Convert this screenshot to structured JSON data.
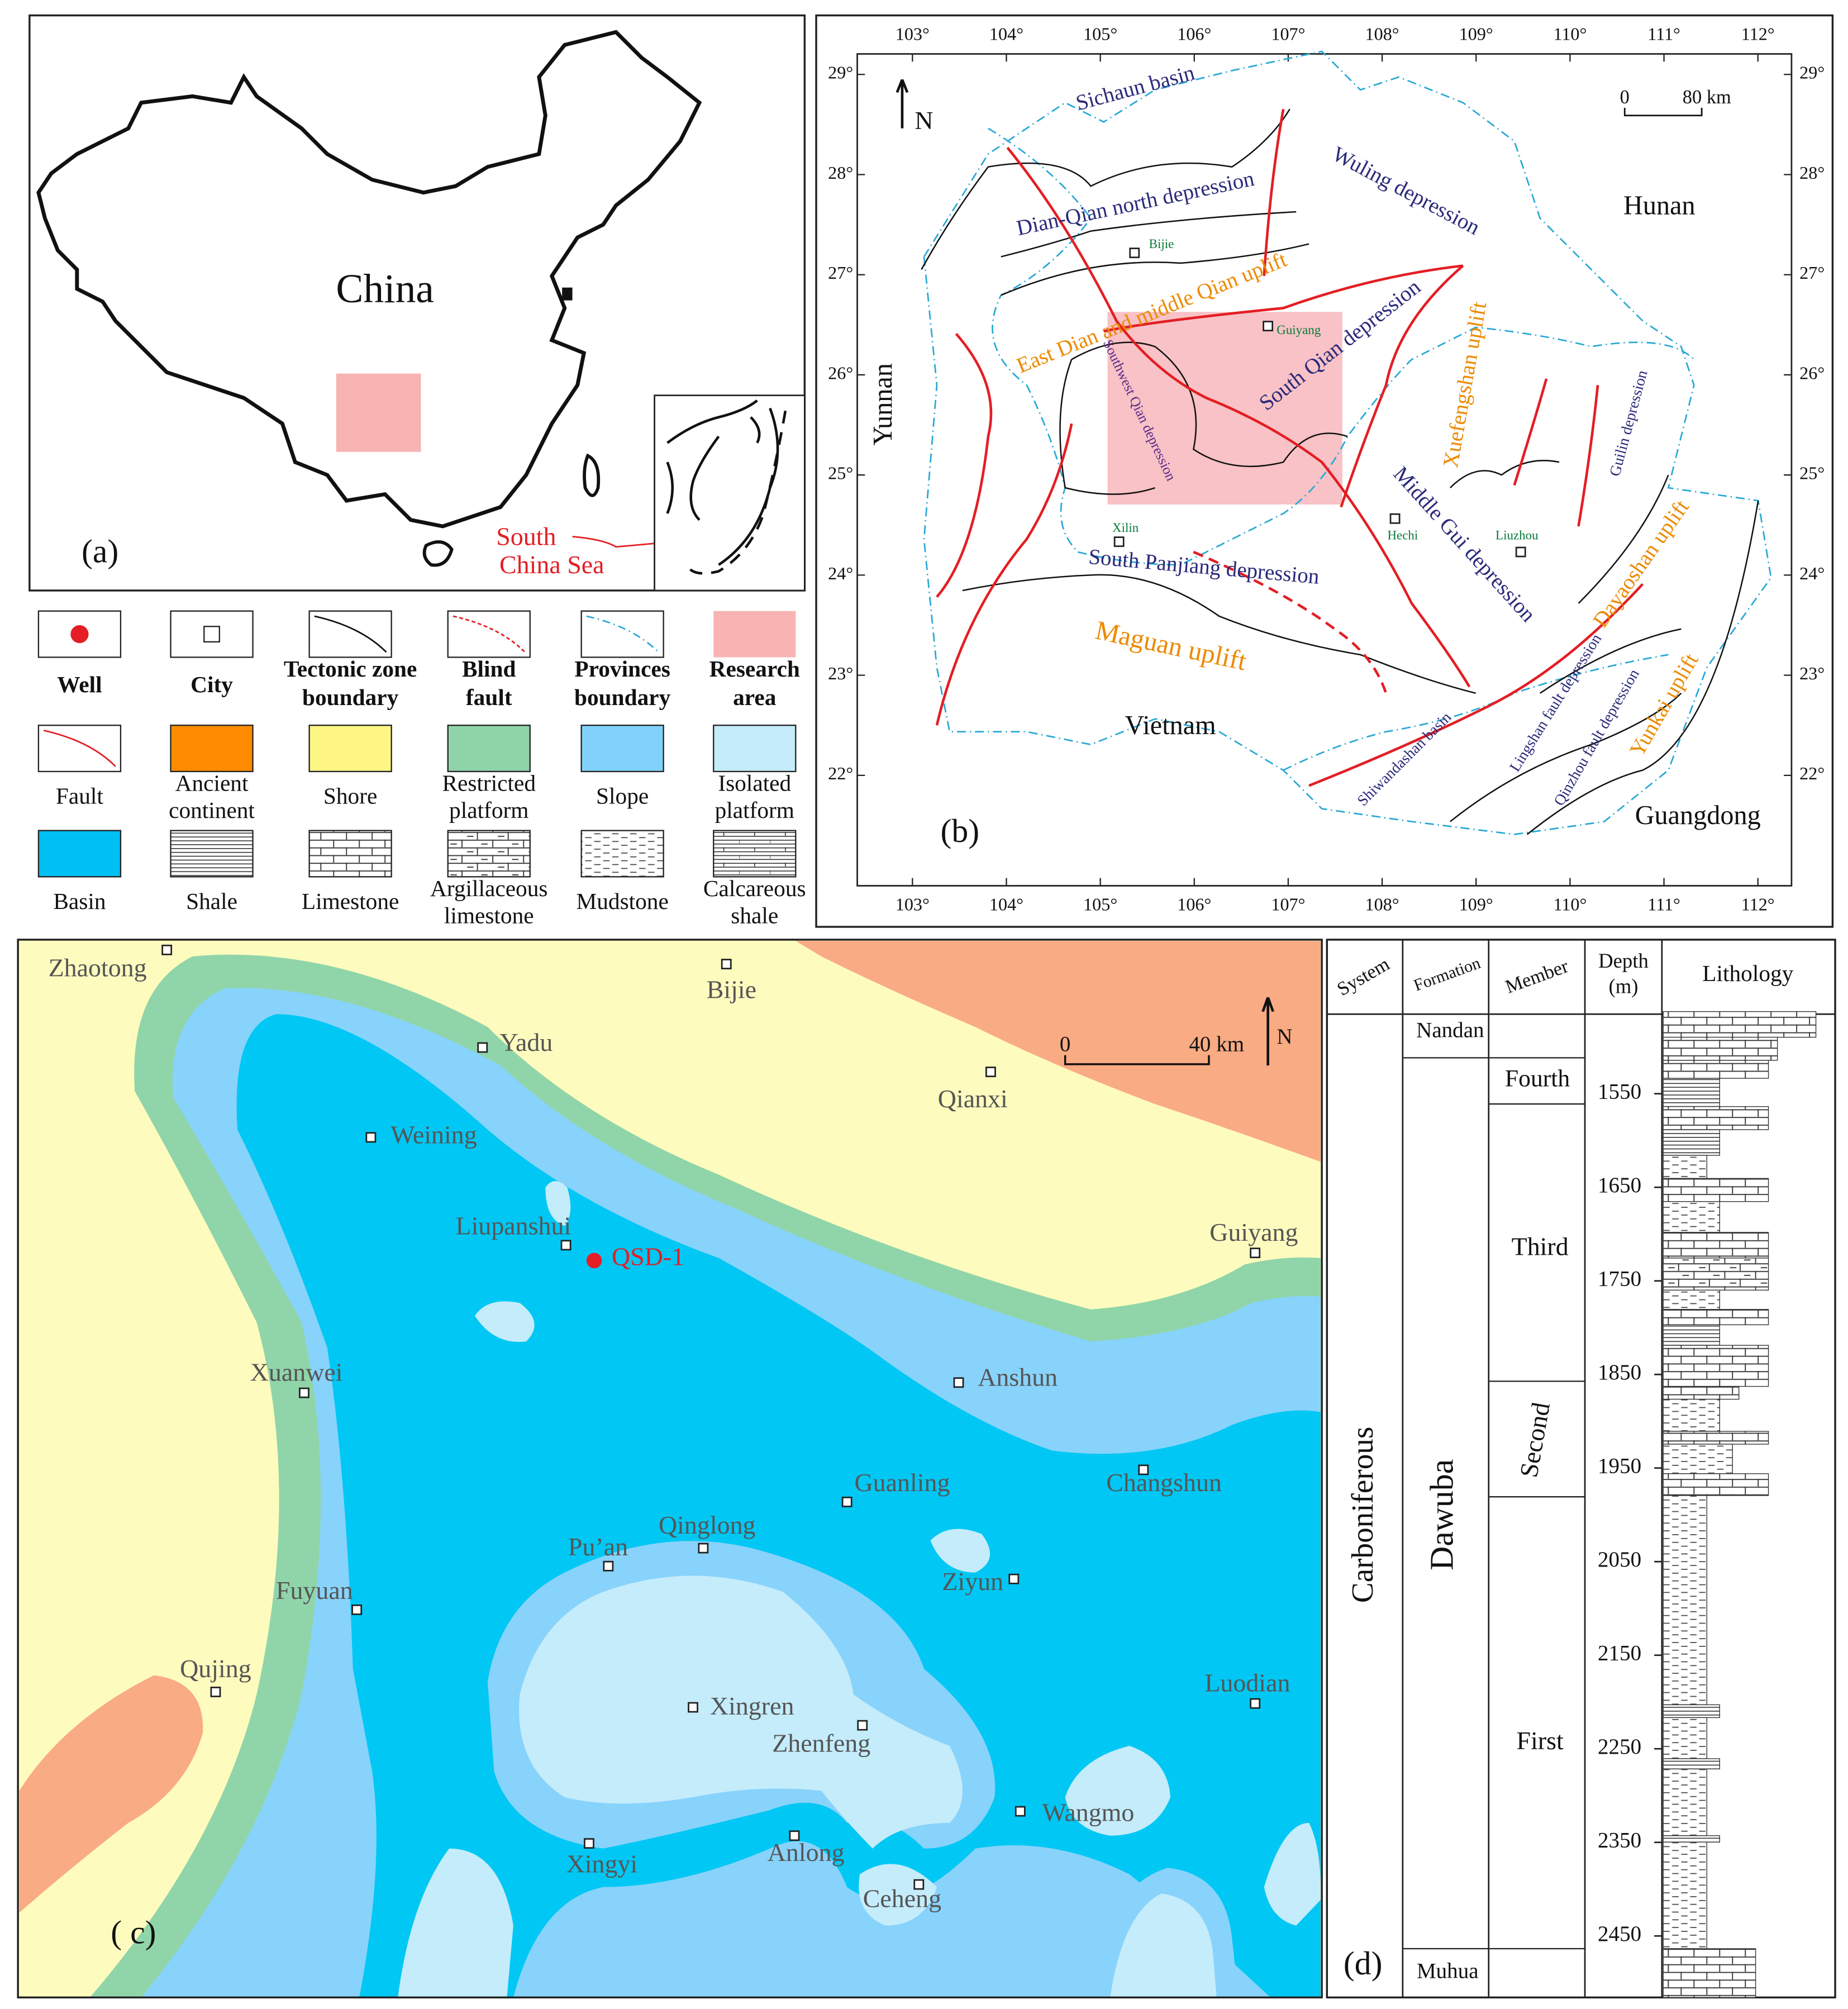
{
  "panel_a": {
    "label": "(a)",
    "country": "China",
    "sea_label": [
      "South",
      "China Sea"
    ]
  },
  "legend": {
    "items": [
      {
        "lines": [
          "Well"
        ]
      },
      {
        "lines": [
          "City"
        ]
      },
      {
        "lines": [
          "Tectonic zone",
          "boundary"
        ]
      },
      {
        "lines": [
          "Blind",
          "fault"
        ]
      },
      {
        "lines": [
          "Provinces",
          "boundary"
        ]
      },
      {
        "lines": [
          "Research",
          "area"
        ]
      },
      {
        "lines": [
          "Fault"
        ]
      },
      {
        "lines": [
          "Ancient",
          "continent"
        ]
      },
      {
        "lines": [
          "Shore"
        ]
      },
      {
        "lines": [
          "Restricted",
          "platform"
        ]
      },
      {
        "lines": [
          "Slope"
        ]
      },
      {
        "lines": [
          "Isolated",
          "platform"
        ]
      },
      {
        "lines": [
          "Basin"
        ]
      },
      {
        "lines": [
          "Shale"
        ]
      },
      {
        "lines": [
          "Limestone"
        ]
      },
      {
        "lines": [
          "Argillaceous",
          "limestone"
        ]
      },
      {
        "lines": [
          "Mudstone"
        ]
      },
      {
        "lines": [
          "Calcareous",
          "shale"
        ]
      }
    ]
  },
  "panel_b": {
    "label": "(b)",
    "north": "N",
    "scale": [
      "0",
      "80 km"
    ],
    "lon_ticks": [
      "103°",
      "104°",
      "105°",
      "106°",
      "107°",
      "108°",
      "109°",
      "110°",
      "111°",
      "112°"
    ],
    "lat_ticks": [
      "29°",
      "28°",
      "27°",
      "26°",
      "25°",
      "24°",
      "23°",
      "22°"
    ],
    "regions": [
      "Sichaun basin",
      "Dian-Qian north depression",
      "Wuling depression",
      "Hunan",
      "East Dian  and middle Qian uplift",
      "South Qian depression",
      "Xuefengshan uplift",
      "Guilin depression",
      "Southwest Qian depression",
      "Yunnan",
      "Middle Gui depression",
      "South Panjiang depression",
      "Dayaoshan uplift",
      "Maguan uplift",
      "Lingshan fault depression",
      "Yunkai uplift",
      "Qinzhou fault depression",
      "Shiwandashan basin",
      "Vietnam",
      "Guangdong"
    ],
    "cities": [
      "Bijie",
      "Guiyang",
      "Xilin",
      "Hechi",
      "Liuzhou"
    ]
  },
  "panel_c": {
    "label": "( c)",
    "north": "N",
    "scale": [
      "0",
      "40 km"
    ],
    "well": "QSD-1",
    "cities": [
      "Zhaotong",
      "Bijie",
      "Yadu",
      "Qianxi",
      "Weining",
      "Liupanshui",
      "Guiyang",
      "Xuanwei",
      "Anshun",
      "Guanling",
      "Changshun",
      "Qinglong",
      "Pu’an",
      "Ziyun",
      "Fuyuan",
      "Qujing",
      "Luodian",
      "Xingren",
      "Zhenfeng",
      "Wangmo",
      "Anlong",
      "Xingyi",
      "Ceheng"
    ]
  },
  "panel_d": {
    "label": "(d)",
    "headers": [
      [
        "System"
      ],
      [
        "Formation"
      ],
      [
        "Member"
      ],
      [
        "Depth",
        "(m)"
      ],
      [
        "Lithology"
      ]
    ],
    "system": "Carboniferous",
    "formations": [
      "Nandan",
      "Dawuba",
      "Muhua"
    ],
    "members": [
      "Fourth",
      "Third",
      "Second",
      "First"
    ],
    "depth_ticks": [
      1550,
      1650,
      1750,
      1850,
      1950,
      2050,
      2150,
      2250,
      2350,
      2450
    ]
  }
}
